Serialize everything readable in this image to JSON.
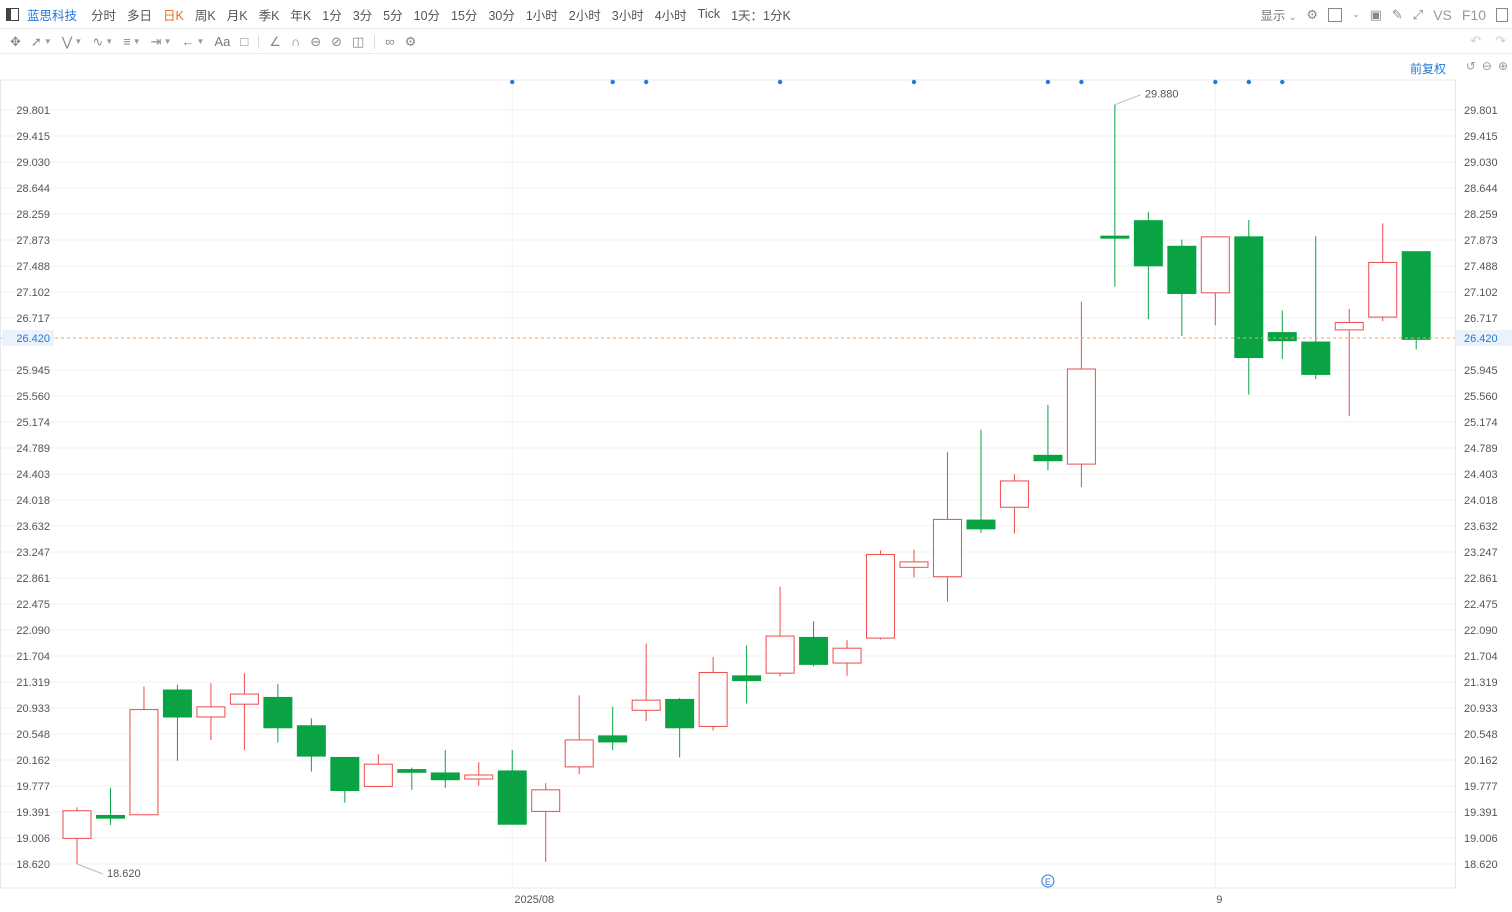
{
  "header": {
    "stock_name": "蓝思科技",
    "periods": [
      "分时",
      "多日",
      "日K",
      "周K",
      "月K",
      "季K",
      "年K",
      "1分",
      "3分",
      "5分",
      "10分",
      "15分",
      "30分",
      "1小时",
      "2小时",
      "3小时",
      "4小时",
      "Tick",
      "1天：1分K"
    ],
    "active_period": "日K",
    "display_label": "显示",
    "vs_label": "VS",
    "f10_label": "F10"
  },
  "toolbar": {
    "text_tool_label": "Aa"
  },
  "adjust_label": "前复权",
  "colors": {
    "up": "#ee4b4b",
    "down": "#0aa344",
    "accent": "#2478d8",
    "active_period": "#f26b1d",
    "last_price_line": "#f0a35a"
  },
  "chart_data": {
    "type": "candlestick",
    "y_ticks": [
      "29.801",
      "29.415",
      "29.030",
      "28.644",
      "28.259",
      "27.873",
      "27.488",
      "27.102",
      "26.717",
      "26.420",
      "25.945",
      "25.560",
      "25.174",
      "24.789",
      "24.403",
      "24.018",
      "23.632",
      "23.247",
      "22.861",
      "22.475",
      "22.090",
      "21.704",
      "21.319",
      "20.933",
      "20.548",
      "20.162",
      "19.777",
      "19.391",
      "19.006",
      "18.620"
    ],
    "ylim": [
      18.62,
      29.88
    ],
    "x_labels": [
      "2025/08",
      "9"
    ],
    "last_price": "26.420",
    "max_label": "29.880",
    "min_label": "18.620",
    "candles": [
      {
        "o": 19.0,
        "h": 19.46,
        "l": 18.62,
        "c": 19.41
      },
      {
        "o": 19.34,
        "h": 19.75,
        "l": 19.2,
        "c": 19.3
      },
      {
        "o": 19.35,
        "h": 21.25,
        "l": 19.34,
        "c": 20.91
      },
      {
        "o": 21.2,
        "h": 21.28,
        "l": 20.15,
        "c": 20.8
      },
      {
        "o": 20.8,
        "h": 21.3,
        "l": 20.46,
        "c": 20.95
      },
      {
        "o": 20.99,
        "h": 21.45,
        "l": 20.31,
        "c": 21.14
      },
      {
        "o": 21.09,
        "h": 21.29,
        "l": 20.42,
        "c": 20.64
      },
      {
        "o": 20.67,
        "h": 20.78,
        "l": 19.99,
        "c": 20.22
      },
      {
        "o": 20.2,
        "h": 20.2,
        "l": 19.53,
        "c": 19.71
      },
      {
        "o": 19.77,
        "h": 20.25,
        "l": 19.76,
        "c": 20.1
      },
      {
        "o": 20.02,
        "h": 20.05,
        "l": 19.72,
        "c": 19.98
      },
      {
        "o": 19.97,
        "h": 20.31,
        "l": 19.75,
        "c": 19.87
      },
      {
        "o": 19.88,
        "h": 20.13,
        "l": 19.78,
        "c": 19.94
      },
      {
        "o": 20.0,
        "h": 20.31,
        "l": 19.2,
        "c": 19.21
      },
      {
        "o": 19.4,
        "h": 19.82,
        "l": 18.65,
        "c": 19.72
      },
      {
        "o": 20.06,
        "h": 21.12,
        "l": 19.95,
        "c": 20.46
      },
      {
        "o": 20.52,
        "h": 20.95,
        "l": 20.31,
        "c": 20.43
      },
      {
        "o": 20.9,
        "h": 21.89,
        "l": 20.74,
        "c": 21.05
      },
      {
        "o": 21.06,
        "h": 21.08,
        "l": 20.2,
        "c": 20.64
      },
      {
        "o": 20.66,
        "h": 21.69,
        "l": 20.6,
        "c": 21.46
      },
      {
        "o": 21.41,
        "h": 21.86,
        "l": 21.0,
        "c": 21.34
      },
      {
        "o": 21.45,
        "h": 22.73,
        "l": 21.4,
        "c": 22.0
      },
      {
        "o": 21.98,
        "h": 22.22,
        "l": 21.55,
        "c": 21.58
      },
      {
        "o": 21.6,
        "h": 21.94,
        "l": 21.41,
        "c": 21.82
      },
      {
        "o": 21.97,
        "h": 23.27,
        "l": 21.95,
        "c": 23.21
      },
      {
        "o": 23.02,
        "h": 23.28,
        "l": 22.87,
        "c": 23.1
      },
      {
        "o": 22.88,
        "h": 24.73,
        "l": 22.51,
        "c": 23.73
      },
      {
        "o": 23.72,
        "h": 25.06,
        "l": 23.53,
        "c": 23.59
      },
      {
        "o": 23.91,
        "h": 24.4,
        "l": 23.52,
        "c": 24.3
      },
      {
        "o": 24.68,
        "h": 25.43,
        "l": 24.46,
        "c": 24.6
      },
      {
        "o": 24.55,
        "h": 26.96,
        "l": 24.21,
        "c": 25.96
      },
      {
        "o": 27.93,
        "h": 29.88,
        "l": 27.18,
        "c": 27.92
      },
      {
        "o": 28.16,
        "h": 28.29,
        "l": 26.7,
        "c": 27.49
      },
      {
        "o": 27.78,
        "h": 27.88,
        "l": 26.45,
        "c": 27.08
      },
      {
        "o": 27.09,
        "h": 27.91,
        "l": 26.61,
        "c": 27.92
      },
      {
        "o": 27.92,
        "h": 28.17,
        "l": 25.58,
        "c": 26.13
      },
      {
        "o": 26.5,
        "h": 26.83,
        "l": 26.11,
        "c": 26.38
      },
      {
        "o": 26.36,
        "h": 27.93,
        "l": 25.81,
        "c": 25.88
      },
      {
        "o": 26.54,
        "h": 26.85,
        "l": 25.26,
        "c": 26.65
      },
      {
        "o": 26.73,
        "h": 28.12,
        "l": 26.67,
        "c": 27.54
      },
      {
        "o": 27.7,
        "h": 27.7,
        "l": 26.25,
        "c": 26.4
      }
    ]
  }
}
